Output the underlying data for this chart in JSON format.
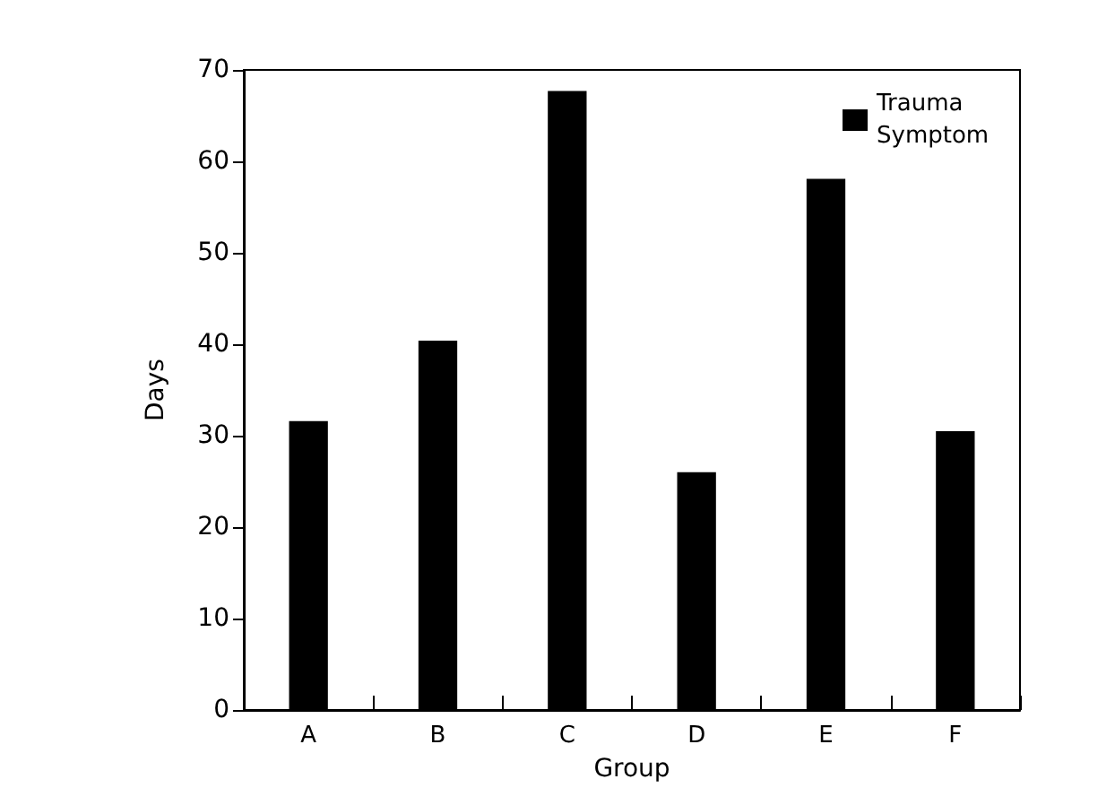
{
  "chart_data": {
    "type": "bar",
    "xlabel": "Group",
    "ylabel": "Days",
    "categories": [
      "A",
      "B",
      "C",
      "D",
      "E",
      "F"
    ],
    "series": [
      {
        "name": "Trauma Symptom",
        "color": "#000000",
        "values": [
          31.6,
          40.4,
          67.7,
          26.0,
          58.1,
          30.5
        ]
      }
    ],
    "ylim": [
      0,
      70
    ],
    "yticks": [
      0,
      10,
      20,
      30,
      40,
      50,
      60,
      70
    ],
    "grid": false,
    "legend": "top right"
  }
}
